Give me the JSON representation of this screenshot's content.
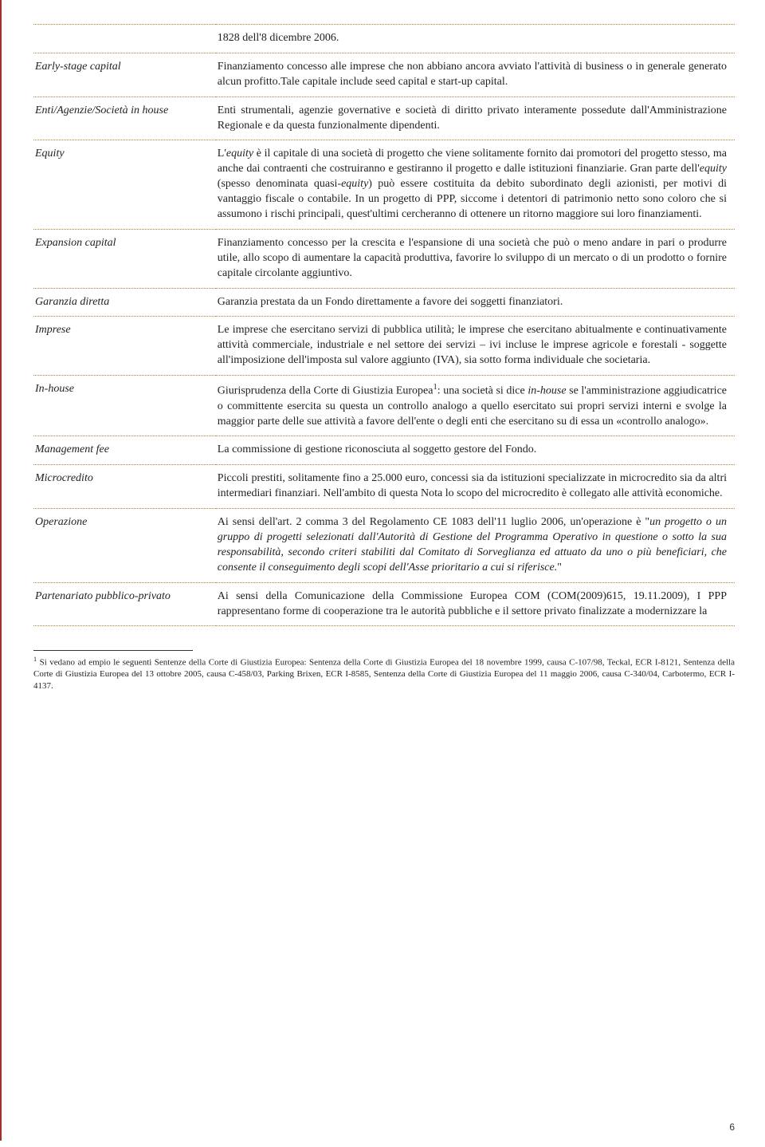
{
  "rows": [
    {
      "term": "",
      "def": "1828 dell'8 dicembre 2006.",
      "firstDef": true
    },
    {
      "term": "Early-stage capital",
      "def": "Finanziamento concesso alle imprese che non abbiano ancora avviato l'attività di business o in generale generato alcun profitto.Tale capitale include seed capital e start-up capital."
    },
    {
      "term": "Enti/Agenzie/Società in house",
      "def": "Enti strumentali, agenzie governative e società di diritto privato interamente possedute dall'Amministrazione Regionale e da questa funzionalmente dipendenti."
    },
    {
      "term": "Equity",
      "def": "L'<em class=\"inner\">equity</em> è il capitale di una società di progetto che viene solitamente fornito dai promotori del progetto stesso, ma anche dai contraenti che costruiranno e gestiranno il progetto e dalle istituzioni finanziarie. Gran parte dell'<em class=\"inner\">equity</em> (spesso denominata quasi-<em class=\"inner\">equity</em>) può essere costituita da debito subordinato degli azionisti, per motivi di vantaggio fiscale o contabile. In un progetto di PPP, siccome i detentori di patrimonio netto sono coloro che si assumono i rischi principali, quest'ultimi cercheranno di ottenere un ritorno maggiore sui loro finanziamenti."
    },
    {
      "term": "Expansion capital",
      "def": "Finanziamento concesso per la crescita e l'espansione di una società che può o meno andare in pari o produrre utile, allo scopo di aumentare la capacità produttiva, favorire lo sviluppo di un mercato o di un prodotto o fornire capitale circolante aggiuntivo."
    },
    {
      "term": "Garanzia diretta",
      "def": "Garanzia prestata da un Fondo direttamente a favore dei soggetti finanziatori."
    },
    {
      "term": "Imprese",
      "def": "Le imprese che esercitano servizi di pubblica utilità; le imprese che esercitano abitualmente e continuativamente attività commerciale, industriale e nel settore dei servizi – ivi incluse le imprese agricole e forestali - soggette all'imposizione dell'imposta sul valore aggiunto (IVA), sia sotto forma individuale che societaria."
    },
    {
      "term": "In-house",
      "def": "Giurisprudenza della Corte di Giustizia Europea<sup>1</sup>: una società si dice <em class=\"inner\">in-house</em> se l'amministrazione aggiudicatrice o committente esercita su questa un controllo analogo a quello esercitato sui propri servizi interni e svolge la maggior parte delle sue attività a favore dell'ente o degli enti che esercitano su di essa un «controllo analogo»."
    },
    {
      "term": "Management fee",
      "def": "La commissione di gestione riconosciuta al soggetto gestore del Fondo."
    },
    {
      "term": "Microcredito",
      "def": "Piccoli prestiti, solitamente fino a 25.000 euro, concessi sia da istituzioni specializzate in microcredito sia da altri intermediari finanziari. Nell'ambito di questa Nota lo scopo del microcredito è collegato alle attività economiche."
    },
    {
      "term": "Operazione",
      "def": "Ai sensi dell'art. 2 comma 3 del Regolamento CE 1083 dell'11 luglio 2006, un'operazione è \"<em class=\"inner\">un progetto o un gruppo di progetti selezionati dall'Autorità di Gestione del Programma Operativo in questione o sotto la sua responsabilità, secondo criteri stabiliti dal Comitato di Sorveglianza ed attuato da uno o più beneficiari, che consente il conseguimento degli scopi dell'Asse prioritario a cui si riferisce.</em>\""
    },
    {
      "term": "Partenariato pubblico-privato",
      "def": "Ai sensi della Comunicazione della Commissione Europea COM (COM(2009)615, 19.11.2009), I PPP rappresentano forme di cooperazione tra le autorità pubbliche e il settore privato finalizzate a modernizzare la"
    }
  ],
  "footnote": "<sup>1</sup> Si vedano ad empio le seguenti Sentenze della Corte di Giustizia Europea: Sentenza della Corte di Giustizia Europea del 18 novembre 1999, causa C-107/98, Teckal, ECR I-8121, Sentenza della Corte di Giustizia Europea del 13 ottobre 2005, causa C-458/03, Parking Brixen, ECR I-8585, Sentenza della Corte di Giustizia Europea del 11 maggio 2006, causa C-340/04, Carbotermo, ECR I-4137.",
  "pageNumber": "6",
  "style": {
    "pageWidth": 880,
    "leftBorderColor": "#a03028",
    "rowBorderColor": "#b08030",
    "termWidthPct": 26,
    "defWidthPct": 74,
    "bodyFontSize": 14,
    "footnoteFontSize": 11,
    "textColor": "#222222",
    "backgroundColor": "#ffffff"
  }
}
